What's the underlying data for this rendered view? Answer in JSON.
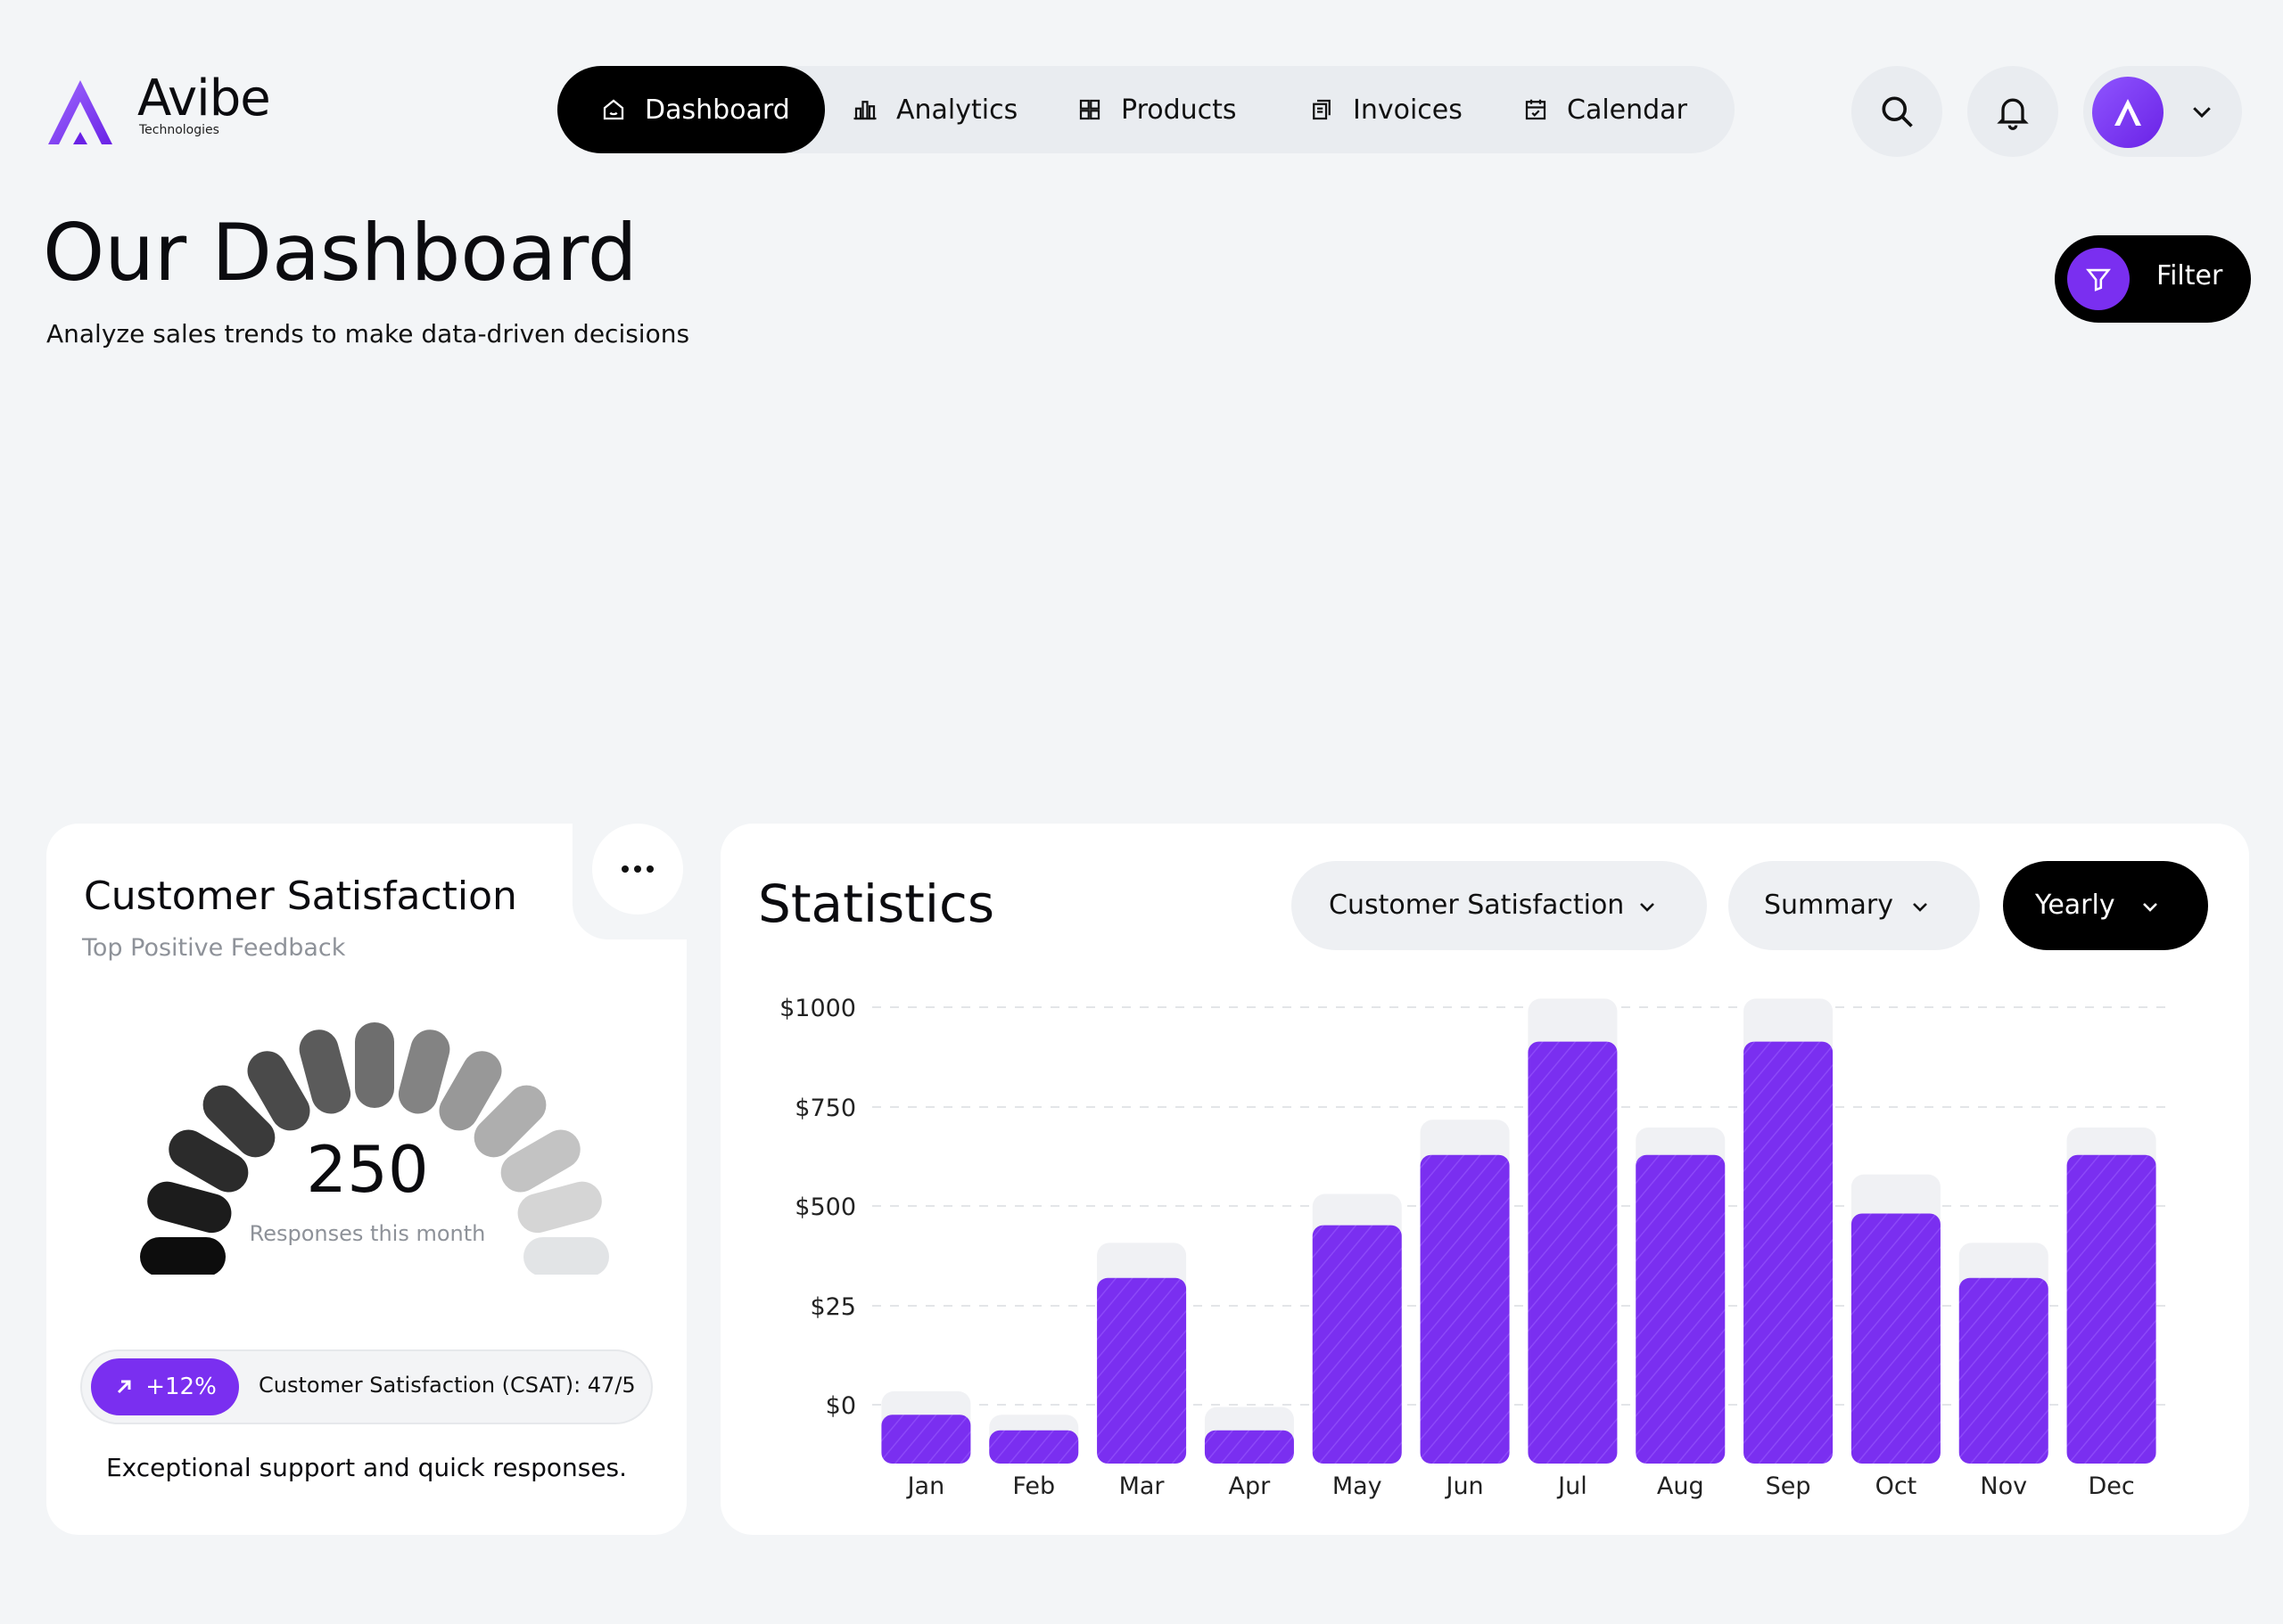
{
  "brand": {
    "name": "Avibe",
    "tagline": "Technologies"
  },
  "nav": [
    {
      "label": "Dashboard",
      "icon": "home-icon",
      "active": true
    },
    {
      "label": "Analytics",
      "icon": "bar-chart-icon",
      "active": false
    },
    {
      "label": "Products",
      "icon": "grid-icon",
      "active": false
    },
    {
      "label": "Invoices",
      "icon": "document-icon",
      "active": false
    },
    {
      "label": "Calendar",
      "icon": "calendar-icon",
      "active": false
    }
  ],
  "header_actions": {
    "search_icon": "search-icon",
    "notification_icon": "bell-icon",
    "profile_chevron": "chevron-down-icon"
  },
  "page": {
    "title": "Our Dashboard",
    "subtitle": "Analyze sales trends to make data-driven decisions",
    "filter_label": "Filter"
  },
  "satisfaction": {
    "title": "Customer Satisfaction",
    "subtitle": "Top Positive Feedback",
    "value": "250",
    "value_label": "Responses this month",
    "change": "+12%",
    "csat_text": "Customer Satisfaction (CSAT): 47/5",
    "footer": "Exceptional support and quick responses."
  },
  "statistics": {
    "title": "Statistics",
    "metric_dropdown": "Customer Satisfaction",
    "view_dropdown": "Summary",
    "period_dropdown": "Yearly"
  },
  "colors": {
    "accent": "#7a2ff0",
    "dark": "#000000",
    "background": "#f3f5f7",
    "card": "#ffffff"
  },
  "chart_data": {
    "type": "bar",
    "categories": [
      "Jan",
      "Feb",
      "Mar",
      "Apr",
      "May",
      "Jun",
      "Jul",
      "Aug",
      "Sep",
      "Oct",
      "Nov",
      "Dec"
    ],
    "values": [
      125,
      85,
      475,
      85,
      610,
      790,
      1080,
      790,
      1080,
      640,
      475,
      790
    ],
    "background_values": [
      185,
      125,
      565,
      145,
      690,
      880,
      1190,
      860,
      1190,
      740,
      565,
      860
    ],
    "y_ticks": [
      "$0",
      "$25",
      "$500",
      "$750",
      "$1000"
    ],
    "ylim": [
      0,
      1200
    ]
  }
}
